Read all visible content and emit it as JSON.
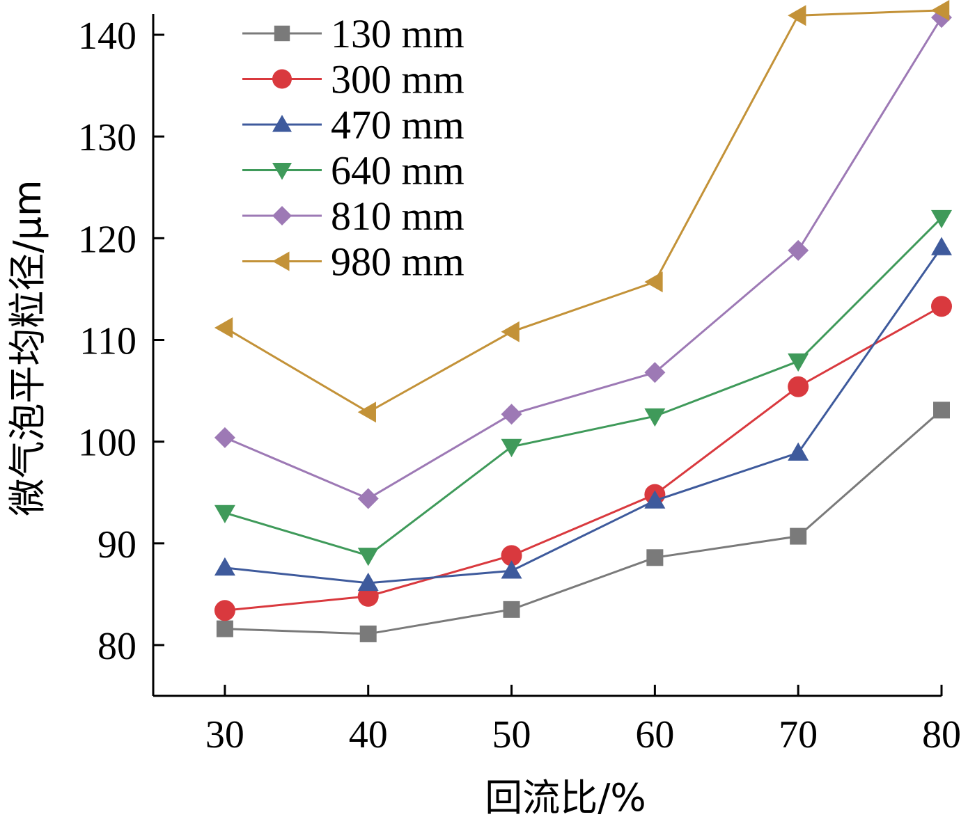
{
  "chart_data": {
    "type": "line",
    "xlabel": "回流比/%",
    "ylabel": "微气泡平均粒径/μm",
    "x": [
      30,
      40,
      50,
      60,
      70,
      80
    ],
    "xlim": [
      25,
      80
    ],
    "ylim": [
      75,
      141
    ],
    "xticks": [
      30,
      40,
      50,
      60,
      70,
      80
    ],
    "yticks": [
      80,
      90,
      100,
      110,
      120,
      130,
      140
    ],
    "grid": false,
    "legend_position": "top-left",
    "series": [
      {
        "name": "130 mm",
        "color": "#7a7a7a",
        "marker": "square",
        "values": [
          81.6,
          81.1,
          83.5,
          88.6,
          90.7,
          103.1
        ]
      },
      {
        "name": "300 mm",
        "color": "#d9393e",
        "marker": "circle",
        "values": [
          83.4,
          84.8,
          88.8,
          94.8,
          105.4,
          113.3
        ]
      },
      {
        "name": "470 mm",
        "color": "#3e5a9c",
        "marker": "triangle-up",
        "values": [
          87.6,
          86.1,
          87.3,
          94.2,
          98.9,
          119.1
        ]
      },
      {
        "name": "640 mm",
        "color": "#3f9a5a",
        "marker": "triangle-down",
        "values": [
          93.0,
          88.8,
          99.5,
          102.5,
          107.9,
          122.0
        ]
      },
      {
        "name": "810 mm",
        "color": "#9d79b5",
        "marker": "diamond",
        "values": [
          100.4,
          94.4,
          102.7,
          106.8,
          118.8,
          141.7
        ]
      },
      {
        "name": "980 mm",
        "color": "#c39238",
        "marker": "triangle-left",
        "values": [
          111.2,
          102.9,
          110.8,
          115.7,
          141.9,
          142.4
        ]
      }
    ]
  }
}
